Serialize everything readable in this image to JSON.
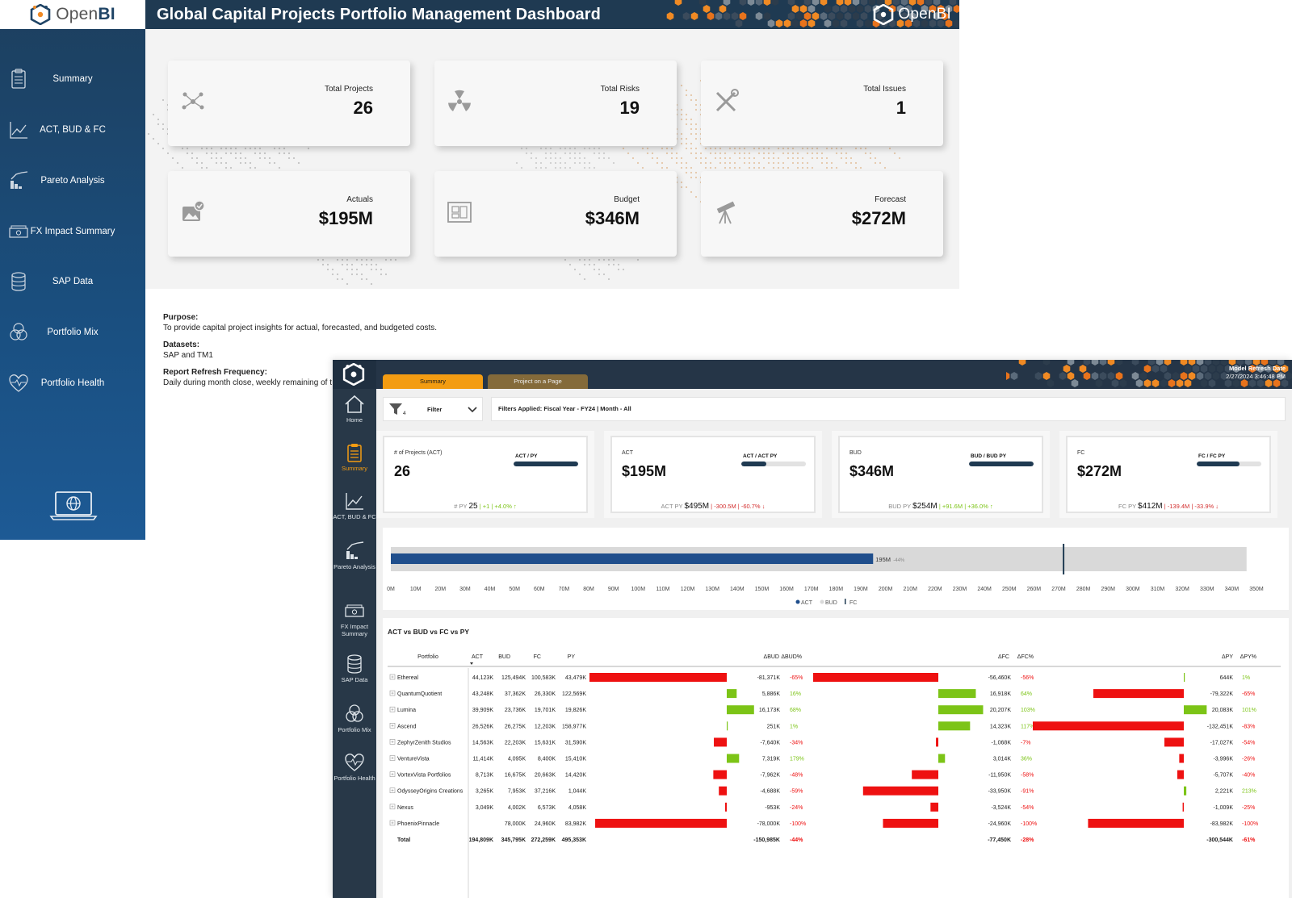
{
  "brand": {
    "logo_prefix": "Open",
    "logo_suffix": "BI"
  },
  "window1": {
    "title": "Global Capital Projects Portfolio Management Dashboard",
    "nav": [
      {
        "label": "Summary",
        "icon": "clipboard-icon"
      },
      {
        "label": "ACT, BUD & FC",
        "icon": "line-chart-icon"
      },
      {
        "label": "Pareto Analysis",
        "icon": "pareto-icon"
      },
      {
        "label": "FX Impact Summary",
        "icon": "cash-icon"
      },
      {
        "label": "SAP Data",
        "icon": "database-icon"
      },
      {
        "label": "Portfolio Mix",
        "icon": "venn-icon"
      },
      {
        "label": "Portfolio Health",
        "icon": "heart-pulse-icon"
      }
    ],
    "kpis": [
      {
        "label": "Total Projects",
        "value": "26",
        "icon": "network-icon"
      },
      {
        "label": "Total Risks",
        "value": "19",
        "icon": "radiation-icon"
      },
      {
        "label": "Total Issues",
        "value": "1",
        "icon": "tools-icon"
      },
      {
        "label": "Actuals",
        "value": "$195M",
        "icon": "image-check-icon"
      },
      {
        "label": "Budget",
        "value": "$346M",
        "icon": "blueprint-icon"
      },
      {
        "label": "Forecast",
        "value": "$272M",
        "icon": "telescope-icon"
      }
    ],
    "info": {
      "purpose_label": "Purpose:",
      "purpose_text": "To provide capital project insights for actual, forecasted, and budgeted costs.",
      "datasets_label": "Datasets:",
      "datasets_text": "SAP and TM1",
      "refresh_label": "Report Refresh Frequency:",
      "refresh_text": "Daily during month close, weekly remaining of t"
    }
  },
  "window2": {
    "tabs": [
      "Summary",
      "Project on a Page"
    ],
    "refresh": {
      "label": "Model Refresh Date",
      "value": "2/27/2024 3:46:48 PM"
    },
    "rail": [
      {
        "label": "Home",
        "icon": "home-icon"
      },
      {
        "label": "Summary",
        "icon": "clipboard-icon",
        "active": true
      },
      {
        "label": "ACT, BUD & FC",
        "icon": "line-chart-icon"
      },
      {
        "label": "Pareto Analysis",
        "icon": "pareto-icon"
      },
      {
        "label": "FX Impact Summary",
        "icon": "cash-icon"
      },
      {
        "label": "SAP Data",
        "icon": "database-icon"
      },
      {
        "label": "Portfolio Mix",
        "icon": "venn-icon"
      },
      {
        "label": "Portfolio Health",
        "icon": "heart-pulse-icon"
      }
    ],
    "filter": {
      "label": "Filter",
      "count": "4",
      "applied": "Filters Applied: Fiscal Year - FY24 | Month - All"
    },
    "cards": [
      {
        "label": "# of Projects (ACT)",
        "value": "26",
        "bar_label": "ACT / PY",
        "bar_fill": 1.0,
        "py_label": "# PY",
        "py_value": "25",
        "delta": "+1",
        "delta_pct": "+4.0%",
        "direction": "up"
      },
      {
        "label": "ACT",
        "value": "$195M",
        "bar_label": "ACT / ACT PY",
        "bar_fill": 0.39,
        "py_label": "ACT PY",
        "py_value": "$495M",
        "delta": "-300.5M",
        "delta_pct": "-60.7%",
        "direction": "down"
      },
      {
        "label": "BUD",
        "value": "$346M",
        "bar_label": "BUD / BUD PY",
        "bar_fill": 1.0,
        "py_label": "BUD PY",
        "py_value": "$254M",
        "delta": "+91.6M",
        "delta_pct": "+36.0%",
        "direction": "up"
      },
      {
        "label": "FC",
        "value": "$272M",
        "bar_label": "FC / FC PY",
        "bar_fill": 0.66,
        "py_label": "FC PY",
        "py_value": "$412M",
        "delta": "-139.4M",
        "delta_pct": "-33.9%",
        "direction": "down"
      }
    ],
    "table_title": "ACT vs BUD vs FC vs PY"
  },
  "chart_data": [
    {
      "type": "bar",
      "orientation": "horizontal",
      "bar_label": "195M",
      "bar_label_pct": "-44%",
      "series": [
        {
          "name": "ACT",
          "values": [
            195
          ]
        },
        {
          "name": "BUD",
          "values": [
            346
          ]
        },
        {
          "name": "FC",
          "values": [
            272
          ]
        }
      ],
      "x_ticks": [
        "0M",
        "10M",
        "20M",
        "30M",
        "40M",
        "50M",
        "60M",
        "70M",
        "80M",
        "90M",
        "100M",
        "110M",
        "120M",
        "130M",
        "140M",
        "150M",
        "160M",
        "170M",
        "180M",
        "190M",
        "200M",
        "210M",
        "220M",
        "230M",
        "240M",
        "250M",
        "260M",
        "270M",
        "280M",
        "290M",
        "300M",
        "310M",
        "320M",
        "330M",
        "340M",
        "350M"
      ],
      "xlim": [
        0,
        350
      ],
      "legend": [
        "ACT",
        "BUD",
        "FC"
      ],
      "colors": {
        "ACT": "#1f4e8c",
        "BUD": "#d9d9d9",
        "FC": "#1f3a52"
      }
    },
    {
      "type": "table",
      "columns": [
        "Portfolio",
        "ACT",
        "BUD",
        "FC",
        "PY",
        "ΔBUD",
        "ΔBUD%",
        "ΔFC",
        "ΔFC%",
        "ΔPY",
        "ΔPY%"
      ],
      "rows": [
        {
          "name": "Ethereal",
          "act": "44,123K",
          "bud": "125,494K",
          "fc": "100,583K",
          "py": "43,479K",
          "dbud": -81371,
          "dbud_t": "-81,371K",
          "dbud_p": "-65%",
          "dfc": -56460,
          "dfc_t": "-56,460K",
          "dfc_p": "-56%",
          "dpy": 644,
          "dpy_t": "644K",
          "dpy_p": "1%"
        },
        {
          "name": "QuantumQuotient",
          "act": "43,248K",
          "bud": "37,362K",
          "fc": "26,330K",
          "py": "122,569K",
          "dbud": 5886,
          "dbud_t": "5,886K",
          "dbud_p": "16%",
          "dfc": 16918,
          "dfc_t": "16,918K",
          "dfc_p": "64%",
          "dpy": -79322,
          "dpy_t": "-79,322K",
          "dpy_p": "-65%"
        },
        {
          "name": "Lumina",
          "act": "39,909K",
          "bud": "23,736K",
          "fc": "19,701K",
          "py": "19,826K",
          "dbud": 16173,
          "dbud_t": "16,173K",
          "dbud_p": "68%",
          "dfc": 20207,
          "dfc_t": "20,207K",
          "dfc_p": "103%",
          "dpy": 20083,
          "dpy_t": "20,083K",
          "dpy_p": "101%"
        },
        {
          "name": "Ascend",
          "act": "26,526K",
          "bud": "26,275K",
          "fc": "12,203K",
          "py": "158,977K",
          "dbud": 251,
          "dbud_t": "251K",
          "dbud_p": "1%",
          "dfc": 14323,
          "dfc_t": "14,323K",
          "dfc_p": "117%",
          "dpy": -132451,
          "dpy_t": "-132,451K",
          "dpy_p": "-83%"
        },
        {
          "name": "ZephyrZenith Studios",
          "act": "14,563K",
          "bud": "22,203K",
          "fc": "15,631K",
          "py": "31,590K",
          "dbud": -7640,
          "dbud_t": "-7,640K",
          "dbud_p": "-34%",
          "dfc": -1068,
          "dfc_t": "-1,068K",
          "dfc_p": "-7%",
          "dpy": -17027,
          "dpy_t": "-17,027K",
          "dpy_p": "-54%"
        },
        {
          "name": "VentureVista",
          "act": "11,414K",
          "bud": "4,095K",
          "fc": "8,400K",
          "py": "15,410K",
          "dbud": 7319,
          "dbud_t": "7,319K",
          "dbud_p": "179%",
          "dfc": 3014,
          "dfc_t": "3,014K",
          "dfc_p": "36%",
          "dpy": -3996,
          "dpy_t": "-3,996K",
          "dpy_p": "-26%"
        },
        {
          "name": "VortexVista Portfolios",
          "act": "8,713K",
          "bud": "16,675K",
          "fc": "20,663K",
          "py": "14,420K",
          "dbud": -7962,
          "dbud_t": "-7,962K",
          "dbud_p": "-48%",
          "dfc": -11950,
          "dfc_t": "-11,950K",
          "dfc_p": "-58%",
          "dpy": -5707,
          "dpy_t": "-5,707K",
          "dpy_p": "-40%"
        },
        {
          "name": "OdysseyOrigins Creations",
          "act": "3,265K",
          "bud": "7,953K",
          "fc": "37,216K",
          "py": "1,044K",
          "dbud": -4688,
          "dbud_t": "-4,688K",
          "dbud_p": "-59%",
          "dfc": -33950,
          "dfc_t": "-33,950K",
          "dfc_p": "-91%",
          "dpy": 2221,
          "dpy_t": "2,221K",
          "dpy_p": "213%"
        },
        {
          "name": "Nexus",
          "act": "3,049K",
          "bud": "4,002K",
          "fc": "6,573K",
          "py": "4,058K",
          "dbud": -953,
          "dbud_t": "-953K",
          "dbud_p": "-24%",
          "dfc": -3524,
          "dfc_t": "-3,524K",
          "dfc_p": "-54%",
          "dpy": -1009,
          "dpy_t": "-1,009K",
          "dpy_p": "-25%"
        },
        {
          "name": "PhoenixPinnacle",
          "act": "",
          "bud": "78,000K",
          "fc": "24,960K",
          "py": "83,982K",
          "dbud": -78000,
          "dbud_t": "-78,000K",
          "dbud_p": "-100%",
          "dfc": -24960,
          "dfc_t": "-24,960K",
          "dfc_p": "-100%",
          "dpy": -83982,
          "dpy_t": "-83,982K",
          "dpy_p": "-100%"
        }
      ],
      "total": {
        "name": "Total",
        "act": "194,809K",
        "bud": "345,795K",
        "fc": "272,259K",
        "py": "495,353K",
        "dbud_t": "-150,985K",
        "dbud_p": "-44%",
        "dfc_t": "-77,450K",
        "dfc_p": "-28%",
        "dpy_t": "-300,544K",
        "dpy_p": "-61%"
      },
      "colors": {
        "positive": "#7cc417",
        "negative": "#ee1111"
      }
    }
  ]
}
